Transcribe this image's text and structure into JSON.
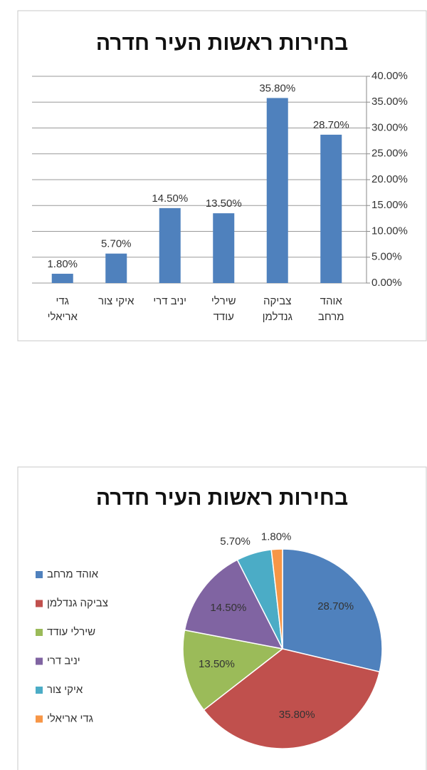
{
  "chart_data": [
    {
      "type": "bar",
      "title": "בחירות ראשות העיר חדרה",
      "categories": [
        "גדי אריאלי",
        "איקי צור",
        "יניב דרי",
        "שירלי עודד",
        "צביקה גנדלמן",
        "אוהד מרחב"
      ],
      "values": [
        1.8,
        5.7,
        14.5,
        13.5,
        35.8,
        28.7
      ],
      "value_labels": [
        "1.80%",
        "5.70%",
        "14.50%",
        "13.50%",
        "35.80%",
        "28.70%"
      ],
      "color": "#4f81bd",
      "ylim": [
        0,
        40
      ],
      "yticks": [
        {
          "value": 0,
          "label": "0.00%"
        },
        {
          "value": 5,
          "label": "5.00%"
        },
        {
          "value": 10,
          "label": "10.00%"
        },
        {
          "value": 15,
          "label": "15.00%"
        },
        {
          "value": 20,
          "label": "20.00%"
        },
        {
          "value": 25,
          "label": "25.00%"
        },
        {
          "value": 30,
          "label": "30.00%"
        },
        {
          "value": 35,
          "label": "35.00%"
        },
        {
          "value": 40,
          "label": "40.00%"
        }
      ],
      "grid": true
    },
    {
      "type": "pie",
      "title": "בחירות ראשות העיר חדרה",
      "categories": [
        "אוהד מרחב",
        "צביקה גנדלמן",
        "שירלי עודד",
        "יניב דרי",
        "איקי צור",
        "גדי אריאלי"
      ],
      "values": [
        28.7,
        35.8,
        13.5,
        14.5,
        5.7,
        1.8
      ],
      "value_labels": [
        "28.70%",
        "35.80%",
        "13.50%",
        "14.50%",
        "5.70%",
        "1.80%"
      ],
      "colors": [
        "#4f81bd",
        "#c0504d",
        "#9bbb59",
        "#8064a2",
        "#4bacc6",
        "#f79646"
      ],
      "legend": "left"
    }
  ]
}
